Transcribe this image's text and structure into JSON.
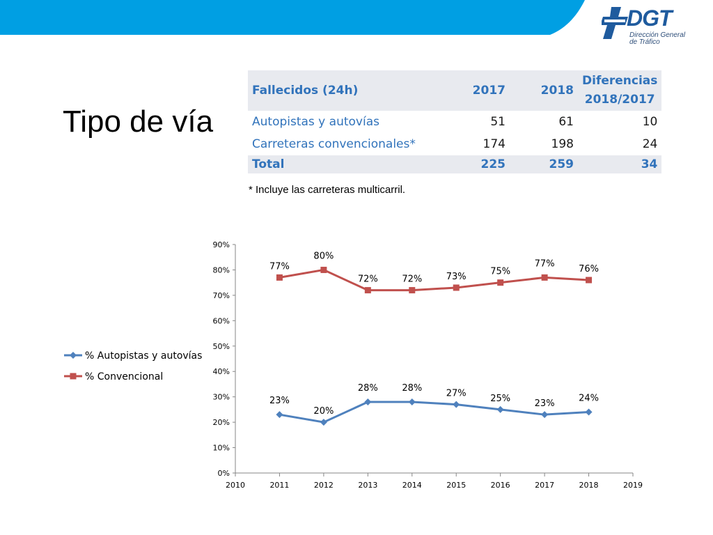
{
  "slide": {
    "title": "Tipo de vía",
    "footnote": "* Incluye las carreteras multicarril."
  },
  "logo": {
    "word": "DGT",
    "sub1": "Dirección General",
    "sub2": "de Tráfico"
  },
  "colors": {
    "banner": "#009fe3",
    "accent": "#3173bb",
    "autopistas": "#4f81bd",
    "convencional": "#c0504d",
    "table_band": "#e8eaef"
  },
  "table": {
    "headers": [
      "Fallecidos (24h)",
      "2017",
      "2018",
      "Diferencias",
      "2018/2017"
    ],
    "rows": [
      [
        "Autopistas y autovías",
        "51",
        "61",
        "10"
      ],
      [
        "Carreteras convencionales*",
        "174",
        "198",
        "24"
      ]
    ],
    "total": [
      "Total",
      "225",
      "259",
      "34"
    ]
  },
  "chart_data": {
    "type": "line",
    "xlim": [
      2010,
      2019
    ],
    "ylim": [
      0,
      90
    ],
    "x_ticks": [
      "2010",
      "2011",
      "2012",
      "2013",
      "2014",
      "2015",
      "2016",
      "2017",
      "2018",
      "2019"
    ],
    "y_ticks": [
      "0%",
      "10%",
      "20%",
      "30%",
      "40%",
      "50%",
      "60%",
      "70%",
      "80%",
      "90%"
    ],
    "x": [
      2011,
      2012,
      2013,
      2014,
      2015,
      2016,
      2017,
      2018
    ],
    "legend_position": "left",
    "series": [
      {
        "name": "% Autopistas y autovías",
        "color": "#4f81bd",
        "marker": "diamond",
        "values": [
          23,
          20,
          28,
          28,
          27,
          25,
          23,
          24
        ],
        "labels": [
          "23%",
          "20%",
          "28%",
          "28%",
          "27%",
          "25%",
          "23%",
          "24%"
        ]
      },
      {
        "name": "% Convencional",
        "color": "#c0504d",
        "marker": "square",
        "values": [
          77,
          80,
          72,
          72,
          73,
          75,
          77,
          76
        ],
        "labels": [
          "77%",
          "80%",
          "72%",
          "72%",
          "73%",
          "75%",
          "77%",
          "76%"
        ]
      }
    ]
  }
}
